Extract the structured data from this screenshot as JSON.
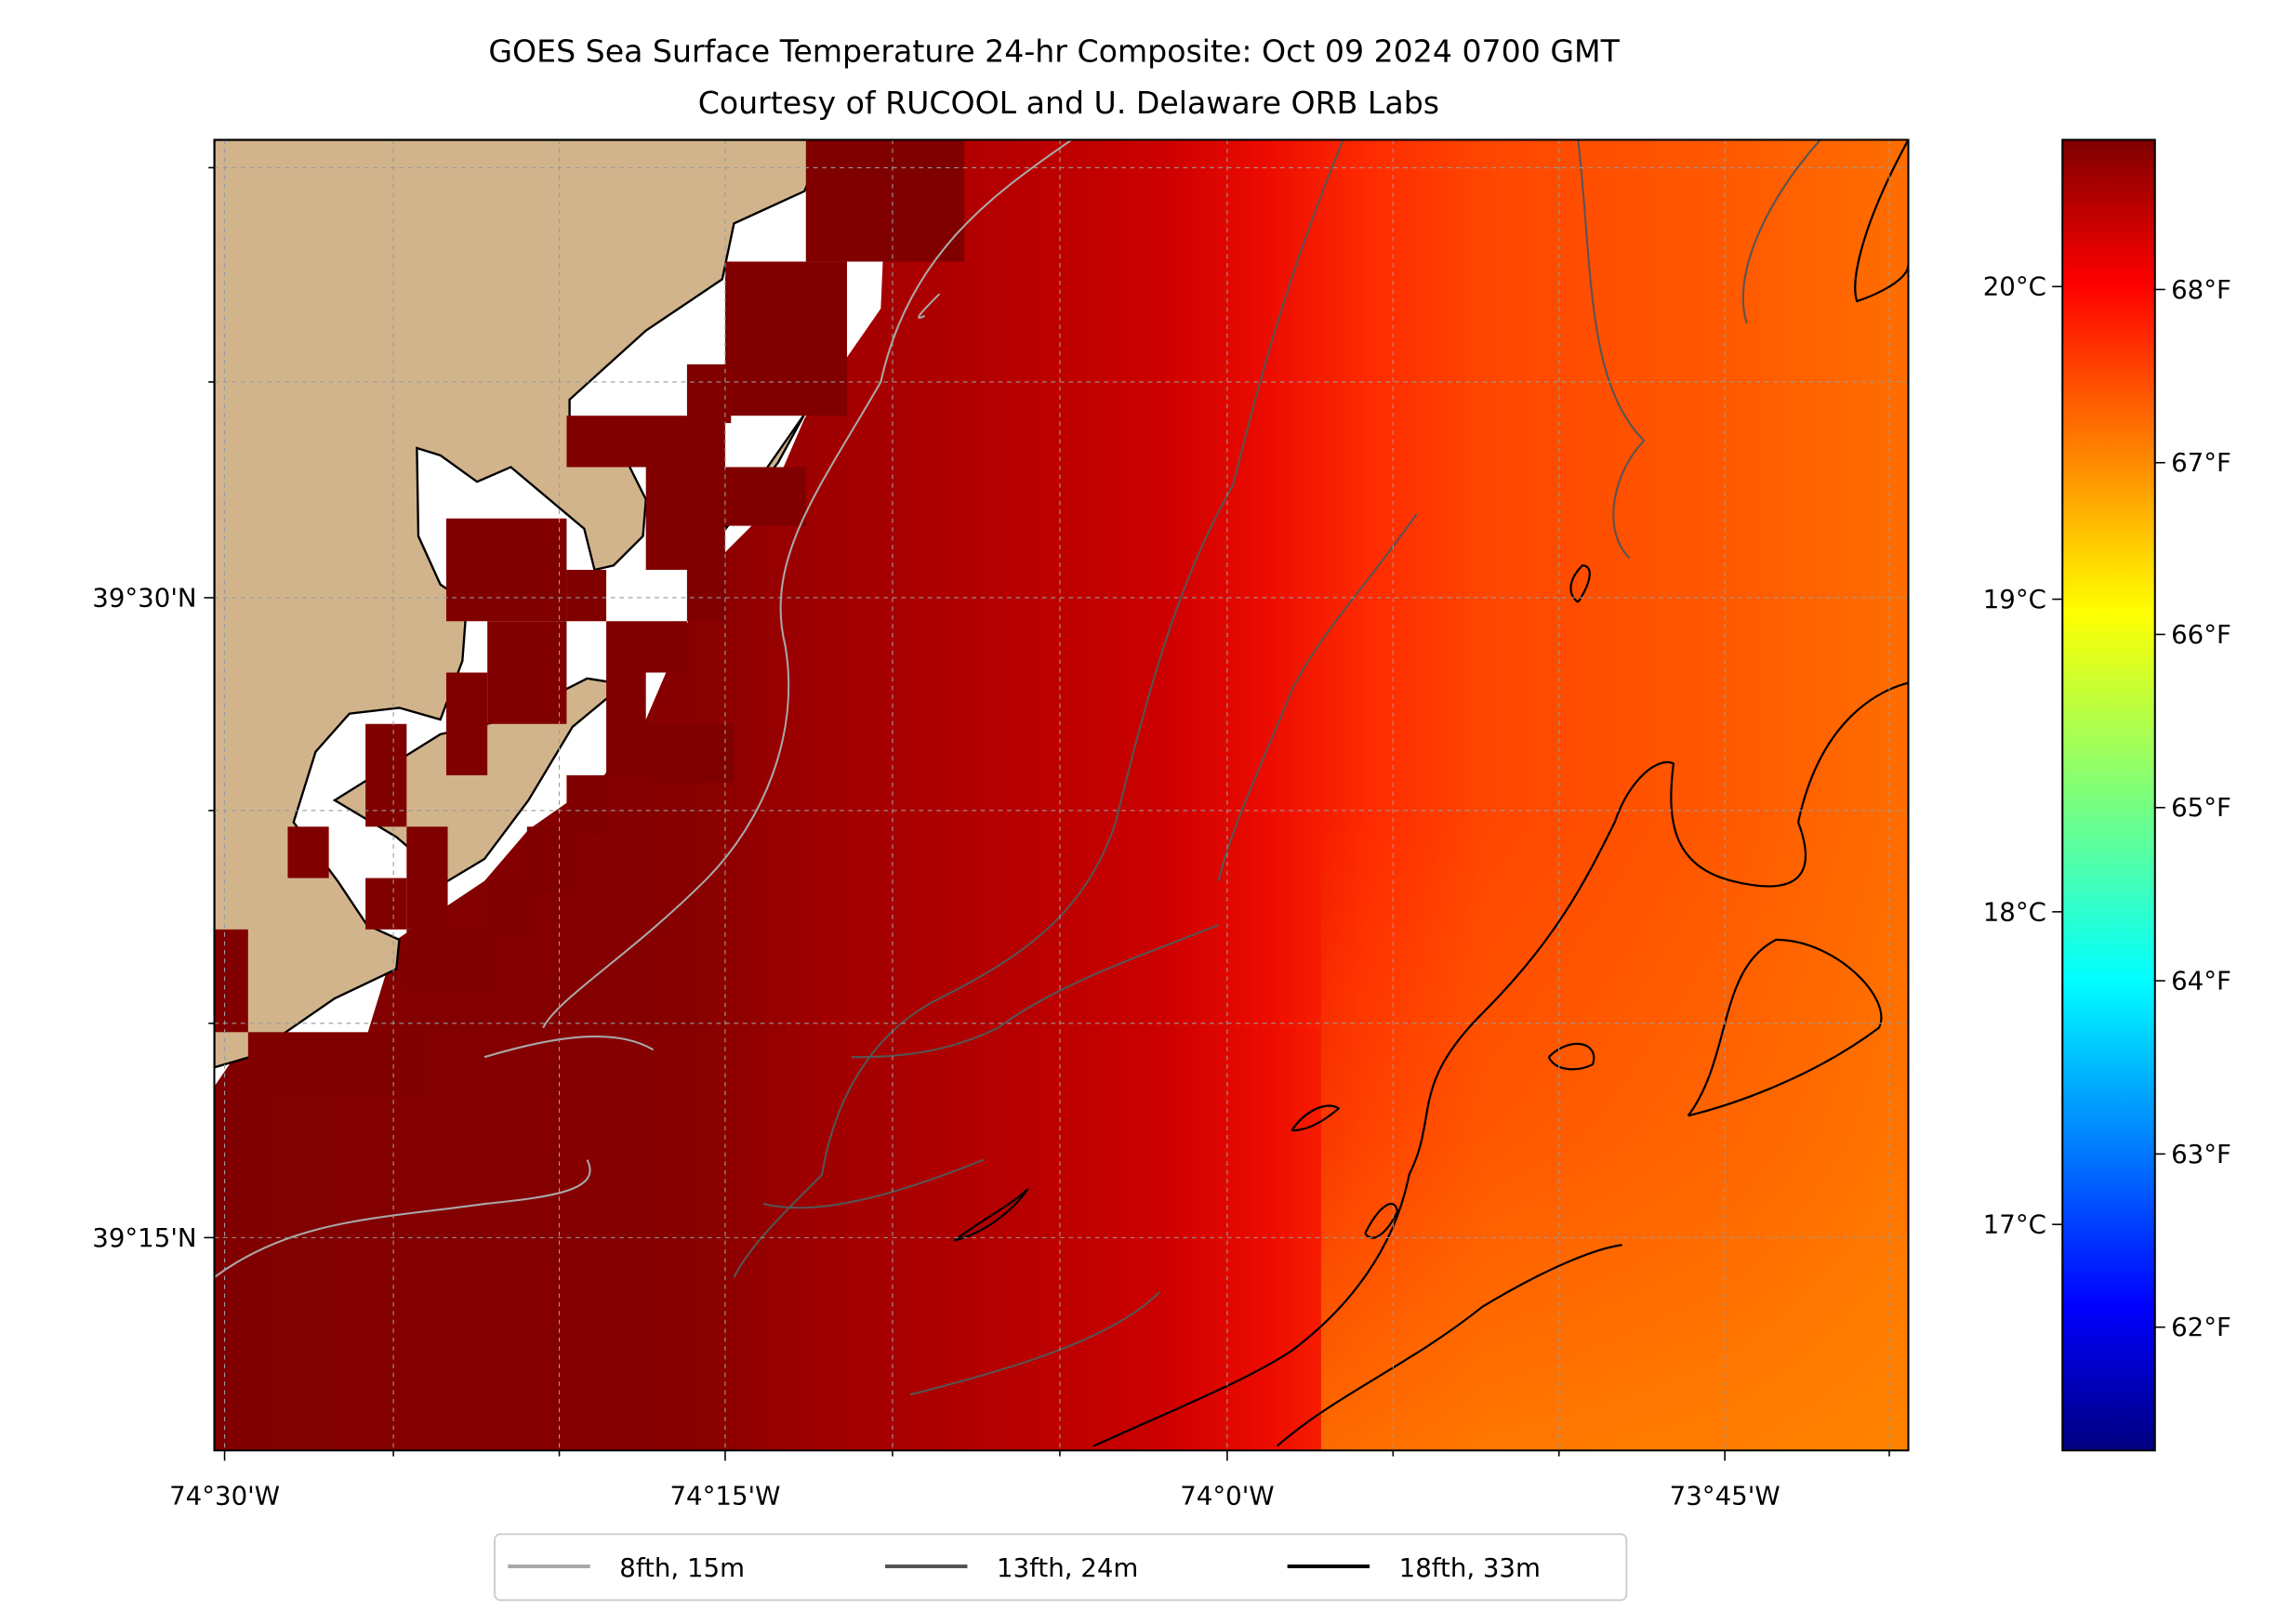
{
  "chart_data": {
    "type": "heatmap",
    "title": "GOES Sea Surface Temperature 24-hr Composite: Oct 09 2024 0700 GMT",
    "subtitle": "Courtesy of RUCOOL and U. Delaware ORB Labs",
    "x_ticks": [
      "74°30'W",
      "74°15'W",
      "74°0'W",
      "73°45'W"
    ],
    "y_ticks": [
      "39°30'N",
      "39°15'N"
    ],
    "grid": true,
    "colormap": "jet",
    "colorbar": {
      "range_f": [
        61.3,
        68.7
      ],
      "ticks_f": [
        "68°F",
        "67°F",
        "66°F",
        "65°F",
        "64°F",
        "63°F",
        "62°F"
      ],
      "ticks_c": [
        "20°C",
        "19°C",
        "18°C",
        "17°C"
      ]
    },
    "field_summary": {
      "west_f": 68.7,
      "central_f": 68.4,
      "east_f": 67.4
    },
    "legend": {
      "placement": "bottom-center",
      "entries": [
        {
          "label": "8fth, 15m",
          "color": "#a9a9a9"
        },
        {
          "label": "13fth, 24m",
          "color": "#555555"
        },
        {
          "label": "18fth, 33m",
          "color": "#000000"
        }
      ]
    },
    "colors": {
      "land": "#d2b48c",
      "nodata": "#ffffff"
    }
  }
}
